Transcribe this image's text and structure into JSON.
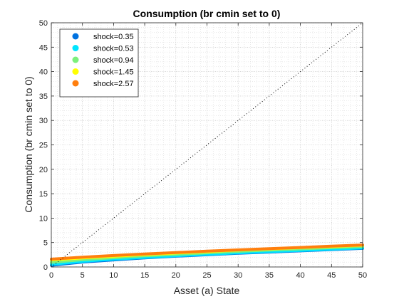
{
  "chart_data": {
    "type": "line",
    "title": "Consumption (br cmin set to 0)",
    "xlabel": "Asset (a) State",
    "ylabel": "Consumption (br cmin set to 0)",
    "xlim": [
      0,
      50
    ],
    "ylim": [
      0,
      50
    ],
    "xticks": [
      0,
      5,
      10,
      15,
      20,
      25,
      30,
      35,
      40,
      45,
      50
    ],
    "yticks": [
      0,
      5,
      10,
      15,
      20,
      25,
      30,
      35,
      40,
      45,
      50
    ],
    "grid": true,
    "minor_grid": true,
    "legend_position": "top-left",
    "reference_line": {
      "x": [
        0,
        50
      ],
      "y": [
        0,
        50
      ],
      "style": "dotted",
      "color": "#000000"
    },
    "x": [
      0,
      5,
      10,
      15,
      20,
      25,
      30,
      35,
      40,
      45,
      50
    ],
    "series": [
      {
        "name": "shock=0.35",
        "color": "#0072e0",
        "values": [
          0.35,
          1.0,
          1.45,
          1.85,
          2.2,
          2.5,
          2.8,
          3.05,
          3.3,
          3.55,
          3.8
        ]
      },
      {
        "name": "shock=0.53",
        "color": "#00e5ff",
        "values": [
          0.55,
          1.15,
          1.6,
          1.95,
          2.3,
          2.6,
          2.9,
          3.15,
          3.4,
          3.65,
          3.9
        ]
      },
      {
        "name": "shock=0.94",
        "color": "#7cf07c",
        "values": [
          0.95,
          1.5,
          1.9,
          2.3,
          2.6,
          2.9,
          3.2,
          3.45,
          3.7,
          3.95,
          4.2
        ]
      },
      {
        "name": "shock=1.45",
        "color": "#ffff00",
        "values": [
          1.45,
          1.85,
          2.2,
          2.55,
          2.85,
          3.15,
          3.45,
          3.7,
          3.95,
          4.2,
          4.45
        ]
      },
      {
        "name": "shock=2.57",
        "color": "#ff7f0e",
        "values": [
          1.6,
          2.0,
          2.35,
          2.65,
          2.95,
          3.25,
          3.5,
          3.75,
          4.0,
          4.25,
          4.5
        ]
      }
    ]
  }
}
